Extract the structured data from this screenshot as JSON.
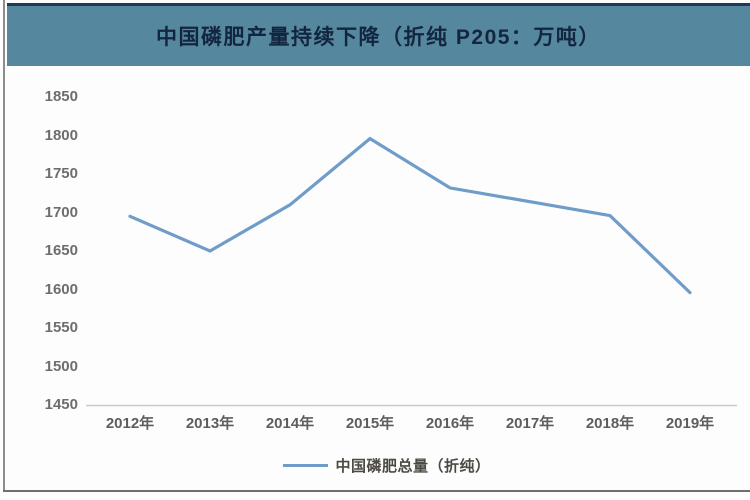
{
  "header": {
    "title": "中国磷肥产量持续下降（折纯 P205：万吨）"
  },
  "chart_data": {
    "type": "line",
    "title": "中国磷肥产量持续下降（折纯 P205：万吨）",
    "categories": [
      "2012年",
      "2013年",
      "2014年",
      "2015年",
      "2016年",
      "2017年",
      "2018年",
      "2019年"
    ],
    "series": [
      {
        "name": "中国磷肥总量（折纯）",
        "values": [
          1695,
          1650,
          1710,
          1796,
          1732,
          1714,
          1696,
          1596
        ]
      }
    ],
    "xlabel": "",
    "ylabel": "",
    "ylim": [
      1450,
      1850
    ],
    "yticks": [
      1850,
      1800,
      1750,
      1700,
      1650,
      1600,
      1550,
      1500,
      1450
    ],
    "grid": false,
    "markers": false,
    "legend_position": "bottom"
  },
  "legend": {
    "items": [
      {
        "label": "中国磷肥总量（折纯）",
        "color": "#6f9cc8"
      }
    ]
  },
  "colors": {
    "banner_bg": "#55879e",
    "banner_border": "#1d3a52",
    "title_text": "#13263f",
    "line": "#6f9cc8",
    "axis_line": "#c9c9c9",
    "y_tick_text": "#6d6d6d",
    "x_tick_text": "#5d5d5d",
    "legend_text": "#4c4a43",
    "frame": "#8d8d8d"
  }
}
